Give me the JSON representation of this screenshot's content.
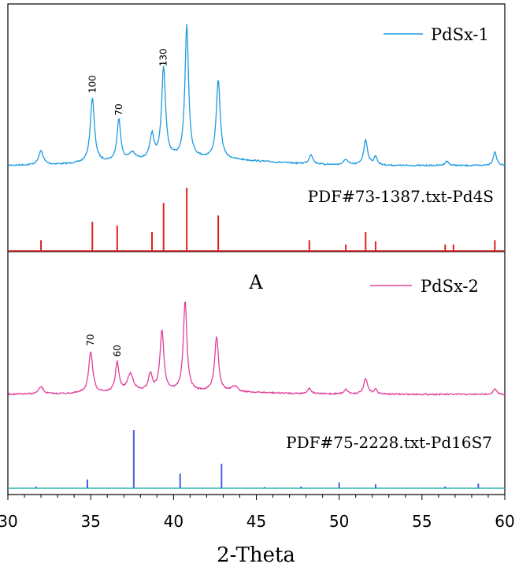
{
  "chart_data": {
    "type": "line",
    "xlabel": "2-Theta",
    "xlim": [
      30,
      60
    ],
    "xticks": [
      30,
      35,
      40,
      45,
      50,
      55,
      60
    ],
    "annotation_letter": "A",
    "series": [
      {
        "name": "PdSx-1",
        "color": "#1e9be0",
        "peaks": [
          {
            "x": 32.0,
            "h": 0.1,
            "w": 0.16
          },
          {
            "x": 35.1,
            "h": 0.46,
            "w": 0.15
          },
          {
            "x": 36.7,
            "h": 0.3,
            "w": 0.13
          },
          {
            "x": 37.5,
            "h": 0.05,
            "w": 0.22
          },
          {
            "x": 38.7,
            "h": 0.17,
            "w": 0.14
          },
          {
            "x": 39.4,
            "h": 0.65,
            "w": 0.14
          },
          {
            "x": 40.8,
            "h": 0.95,
            "w": 0.13
          },
          {
            "x": 42.7,
            "h": 0.56,
            "w": 0.14
          },
          {
            "x": 48.3,
            "h": 0.07,
            "w": 0.13
          },
          {
            "x": 50.4,
            "h": 0.04,
            "w": 0.14
          },
          {
            "x": 51.6,
            "h": 0.18,
            "w": 0.14
          },
          {
            "x": 52.2,
            "h": 0.06,
            "w": 0.12
          },
          {
            "x": 56.5,
            "h": 0.03,
            "w": 0.14
          },
          {
            "x": 59.4,
            "h": 0.1,
            "w": 0.12
          }
        ],
        "peak_labels": [
          {
            "x": 35.1,
            "text": "100"
          },
          {
            "x": 36.7,
            "text": "70"
          },
          {
            "x": 39.4,
            "text": "130"
          }
        ]
      },
      {
        "name": "PdSx-2",
        "color": "#e0409a",
        "peaks": [
          {
            "x": 32.0,
            "h": 0.08,
            "w": 0.16
          },
          {
            "x": 35.0,
            "h": 0.45,
            "w": 0.15
          },
          {
            "x": 36.6,
            "h": 0.33,
            "w": 0.13
          },
          {
            "x": 37.4,
            "h": 0.2,
            "w": 0.22
          },
          {
            "x": 38.6,
            "h": 0.19,
            "w": 0.14
          },
          {
            "x": 39.3,
            "h": 0.67,
            "w": 0.14
          },
          {
            "x": 40.7,
            "h": 1.0,
            "w": 0.13
          },
          {
            "x": 42.6,
            "h": 0.61,
            "w": 0.14
          },
          {
            "x": 43.7,
            "h": 0.06,
            "w": 0.22
          },
          {
            "x": 48.2,
            "h": 0.06,
            "w": 0.13
          },
          {
            "x": 50.4,
            "h": 0.05,
            "w": 0.14
          },
          {
            "x": 51.6,
            "h": 0.17,
            "w": 0.14
          },
          {
            "x": 52.2,
            "h": 0.05,
            "w": 0.12
          },
          {
            "x": 59.4,
            "h": 0.06,
            "w": 0.12
          }
        ],
        "peak_labels": [
          {
            "x": 35.0,
            "text": "70"
          },
          {
            "x": 36.6,
            "text": "60"
          }
        ]
      }
    ],
    "references": [
      {
        "name": "PDF#73-1387.txt-Pd4S",
        "color": "#e02020",
        "lines": [
          {
            "x": 32.0,
            "h": 0.17
          },
          {
            "x": 35.1,
            "h": 0.46
          },
          {
            "x": 36.6,
            "h": 0.4
          },
          {
            "x": 38.7,
            "h": 0.3
          },
          {
            "x": 39.4,
            "h": 0.76
          },
          {
            "x": 40.8,
            "h": 1.0
          },
          {
            "x": 42.7,
            "h": 0.56
          },
          {
            "x": 48.2,
            "h": 0.17
          },
          {
            "x": 50.4,
            "h": 0.1
          },
          {
            "x": 51.6,
            "h": 0.3
          },
          {
            "x": 52.2,
            "h": 0.15
          },
          {
            "x": 56.4,
            "h": 0.1
          },
          {
            "x": 56.9,
            "h": 0.1
          },
          {
            "x": 59.4,
            "h": 0.17
          }
        ]
      },
      {
        "name": "PDF#75-2228.txt-Pd16S7",
        "color": "#4a5ee0",
        "baseline_color": "#2ab3b3",
        "lines": [
          {
            "x": 31.7,
            "h": 0.03
          },
          {
            "x": 34.8,
            "h": 0.15
          },
          {
            "x": 37.6,
            "h": 1.0
          },
          {
            "x": 40.4,
            "h": 0.25
          },
          {
            "x": 42.9,
            "h": 0.42
          },
          {
            "x": 45.5,
            "h": 0.02
          },
          {
            "x": 47.7,
            "h": 0.03
          },
          {
            "x": 50.0,
            "h": 0.1
          },
          {
            "x": 52.2,
            "h": 0.07
          },
          {
            "x": 56.4,
            "h": 0.03
          },
          {
            "x": 58.4,
            "h": 0.08
          }
        ]
      }
    ]
  }
}
